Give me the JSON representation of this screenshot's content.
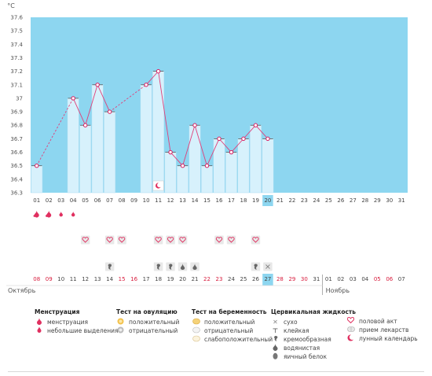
{
  "chart_data": {
    "type": "bar",
    "unit_label": "°C",
    "ylim": [
      36.3,
      37.6
    ],
    "y_ticks": [
      "37.6",
      "37.5",
      "37.4",
      "37.3",
      "37.2",
      "37.1",
      "37",
      "36.9",
      "36.8",
      "36.7",
      "36.6",
      "36.5",
      "36.4",
      "36.3"
    ],
    "cycle_days": [
      "01",
      "02",
      "03",
      "04",
      "05",
      "06",
      "07",
      "08",
      "09",
      "10",
      "11",
      "12",
      "13",
      "14",
      "15",
      "16",
      "17",
      "18",
      "19",
      "20",
      "21",
      "22",
      "23",
      "24",
      "25",
      "26",
      "27",
      "28",
      "29",
      "30",
      "31"
    ],
    "current_day": "20",
    "values": [
      36.5,
      null,
      null,
      37.0,
      36.8,
      37.1,
      36.9,
      null,
      null,
      37.1,
      37.2,
      36.6,
      36.5,
      36.8,
      36.5,
      36.7,
      36.6,
      36.7,
      36.8,
      36.7,
      null,
      null,
      null,
      null,
      null,
      null,
      null,
      null,
      null,
      null,
      null
    ],
    "dates": [
      "08",
      "09",
      "10",
      "11",
      "12",
      "13",
      "14",
      "15",
      "16",
      "17",
      "18",
      "19",
      "20",
      "21",
      "22",
      "23",
      "24",
      "25",
      "26",
      "27",
      "28",
      "29",
      "30",
      "31",
      "01",
      "02",
      "03",
      "04",
      "05",
      "06",
      "07"
    ],
    "date_colors": [
      "red",
      "red",
      "normal",
      "normal",
      "normal",
      "normal",
      "normal",
      "red",
      "red",
      "normal",
      "normal",
      "normal",
      "normal",
      "normal",
      "red",
      "red",
      "normal",
      "normal",
      "normal",
      "today",
      "red",
      "red",
      "red",
      "normal",
      "normal",
      "normal",
      "normal",
      "normal",
      "red",
      "red",
      "normal"
    ],
    "month_left": "Октябрь",
    "month_right": "Ноябрь",
    "menstruation_row": [
      "heavy",
      "heavy",
      "light",
      "light",
      null,
      null,
      null,
      null,
      null,
      null,
      null,
      null,
      null,
      null,
      null,
      null,
      null,
      null,
      null,
      null,
      null,
      null,
      null,
      null,
      null,
      null,
      null,
      null,
      null,
      null,
      null
    ],
    "intercourse_row": [
      null,
      null,
      null,
      null,
      "heart",
      null,
      "heart",
      "heart",
      null,
      null,
      "heart",
      "heart",
      "heart",
      null,
      null,
      "heart",
      "heart",
      null,
      "heart",
      null,
      null,
      null,
      null,
      null,
      null,
      null,
      null,
      null,
      null,
      null,
      null
    ],
    "fluid_row": [
      null,
      null,
      null,
      null,
      null,
      null,
      "creamy",
      null,
      null,
      null,
      "creamy",
      "creamy",
      "watery",
      "watery",
      null,
      null,
      null,
      null,
      "creamy",
      "dry",
      null,
      null,
      null,
      null,
      null,
      null,
      null,
      null,
      null,
      null,
      null
    ],
    "moon_day": "11",
    "colors": {
      "plot_bg": "#8dd6f0",
      "plot_bg_light": "#b3e6f7",
      "bar_fill": "#d7f1fc",
      "bar_edge": "#a9dcf2",
      "line": "#e0407a",
      "marker": "#d81b60",
      "today_bg": "#8dd6f0",
      "red_text": "#d81b3c",
      "icon_bg": "#e8e8e8"
    }
  },
  "legend": {
    "menstruation": {
      "title": "Менструация",
      "items": [
        {
          "label": "менструация",
          "icon": "heavy-drop-icon"
        },
        {
          "label": "небольшие выделения",
          "icon": "light-drop-icon"
        }
      ]
    },
    "ovulation_test": {
      "title": "Тест на овуляцию",
      "items": [
        {
          "label": "положительный",
          "icon": "sun-positive-icon"
        },
        {
          "label": "отрицательный",
          "icon": "sun-negative-icon"
        }
      ]
    },
    "pregnancy_test": {
      "title": "Тест на беременность",
      "items": [
        {
          "label": "положительный",
          "icon": "test-positive-icon"
        },
        {
          "label": "отрицательный",
          "icon": "test-negative-icon"
        },
        {
          "label": "слабоположительный",
          "icon": "test-weak-icon"
        }
      ]
    },
    "cervical_fluid": {
      "title": "Цервикальная жидкость",
      "items": [
        {
          "label": "сухо",
          "icon": "dry-icon"
        },
        {
          "label": "клейкая",
          "icon": "sticky-icon"
        },
        {
          "label": "кремообразная",
          "icon": "creamy-icon"
        },
        {
          "label": "водянистая",
          "icon": "watery-icon"
        },
        {
          "label": "яичный белок",
          "icon": "eggwhite-icon"
        }
      ]
    },
    "other": {
      "items": [
        {
          "label": "половой акт",
          "icon": "heart-icon"
        },
        {
          "label": "прием лекарств",
          "icon": "pill-icon"
        },
        {
          "label": "лунный календарь",
          "icon": "moon-icon"
        }
      ]
    }
  }
}
